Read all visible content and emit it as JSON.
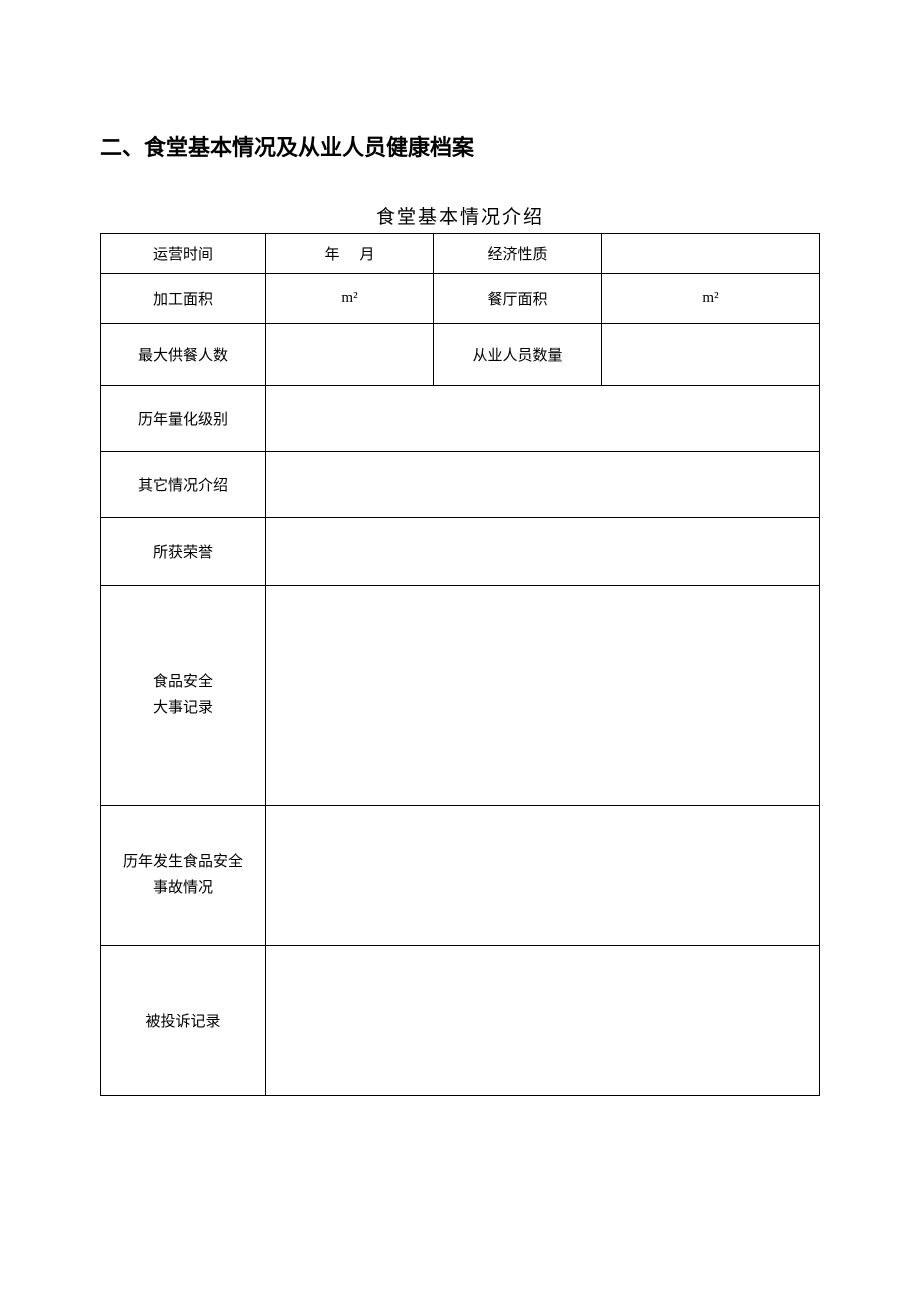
{
  "heading": "二、食堂基本情况及从业人员健康档案",
  "subtitle": "食堂基本情况介绍",
  "rows": {
    "r1": {
      "label1": "运营时间",
      "year": "年",
      "month": "月",
      "label2": "经济性质",
      "value2": ""
    },
    "r2": {
      "label1": "加工面积",
      "value1": "m²",
      "label2": "餐厅面积",
      "value2": "m²"
    },
    "r3": {
      "label1": "最大供餐人数",
      "value1": "",
      "label2": "从业人员数量",
      "value2": ""
    },
    "r4": {
      "label": "历年量化级别",
      "value": ""
    },
    "r5": {
      "label": "其它情况介绍",
      "value": ""
    },
    "r6": {
      "label": "所获荣誉",
      "value": ""
    },
    "r7": {
      "labelLine1": "食品安全",
      "labelLine2": "大事记录",
      "value": ""
    },
    "r8": {
      "labelLine1": "历年发生食品安全",
      "labelLine2": "事故情况",
      "value": ""
    },
    "r9": {
      "label": "被投诉记录",
      "value": ""
    }
  }
}
